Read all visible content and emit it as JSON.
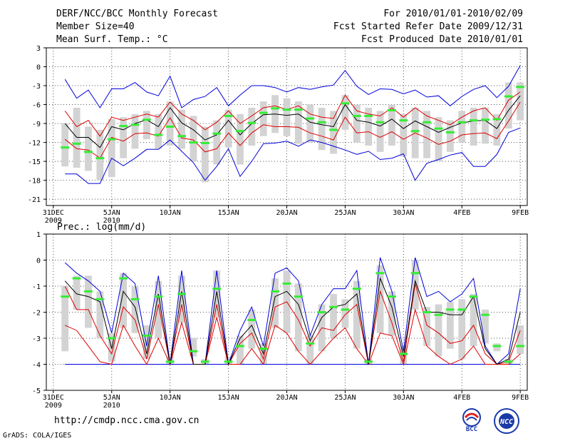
{
  "header": {
    "title": "DERF/NCC/BCC Monthly Forecast",
    "member_size": "Member Size=40",
    "variable": "Mean Surf. Temp.: °C",
    "period": "For 2010/01/01-2010/02/09",
    "fcst_started": "Fcst Started Refer Date 2009/12/31",
    "fcst_produced": "Fcst Produced Date 2010/01/01"
  },
  "footer": {
    "url": "http://cmdp.ncc.cma.gov.cn",
    "credit": "GrADS: COLA/IGES",
    "logo_left_text": "BCC",
    "logo_right_text": "NCC"
  },
  "colors": {
    "box": "#d3d3d3",
    "median": "#33ee33",
    "extreme": "#0000dd",
    "spread": "#dd0000",
    "mean": "#000000"
  },
  "chart_data": [
    {
      "type": "box-plume",
      "title": "Mean Surf. Temp.: °C",
      "xlabel": "",
      "ylabel": "",
      "x_ticks": [
        {
          "day": 0,
          "label": "31DEC",
          "sub": "2009"
        },
        {
          "day": 5,
          "label": "5JAN",
          "sub": "2010"
        },
        {
          "day": 10,
          "label": "10JAN",
          "sub": ""
        },
        {
          "day": 15,
          "label": "15JAN",
          "sub": ""
        },
        {
          "day": 20,
          "label": "20JAN",
          "sub": ""
        },
        {
          "day": 25,
          "label": "25JAN",
          "sub": ""
        },
        {
          "day": 30,
          "label": "30JAN",
          "sub": ""
        },
        {
          "day": 35,
          "label": "4FEB",
          "sub": ""
        },
        {
          "day": 40,
          "label": "9FEB",
          "sub": ""
        }
      ],
      "xlim": [
        0,
        40
      ],
      "ylim": [
        -22,
        3
      ],
      "y_ticks": [
        3,
        0,
        -3,
        -6,
        -9,
        -12,
        -15,
        -18,
        -21
      ],
      "days": [
        1,
        2,
        3,
        4,
        5,
        6,
        7,
        8,
        9,
        10,
        11,
        12,
        13,
        14,
        15,
        16,
        17,
        18,
        19,
        20,
        21,
        22,
        23,
        24,
        25,
        26,
        27,
        28,
        29,
        30,
        31,
        32,
        33,
        34,
        35,
        36,
        37,
        38,
        39,
        40
      ],
      "series": [
        {
          "name": "max",
          "color": "#0000dd",
          "values": [
            -2,
            -5,
            -3.7,
            -6.5,
            -3.5,
            -3.5,
            -2.5,
            -4,
            -4.6,
            -1.5,
            -6.5,
            -5.2,
            -4.7,
            -3.3,
            -6.2,
            -4.5,
            -3,
            -3,
            -3.3,
            -4,
            -3.3,
            -3.6,
            -3.2,
            -2.9,
            -0.6,
            -3.1,
            -4.4,
            -3.5,
            -3.6,
            -4.3,
            -3.7,
            -4.8,
            -4.6,
            -6.2,
            -4.7,
            -3.6,
            -3,
            -4.9,
            -3.1,
            0.2
          ]
        },
        {
          "name": "upper",
          "color": "#dd0000",
          "values": [
            -7,
            -9.5,
            -8.5,
            -11,
            -8,
            -8.5,
            -8,
            -7.5,
            -8,
            -5.6,
            -7.5,
            -8.5,
            -10,
            -8.8,
            -7,
            -9,
            -7.8,
            -6.5,
            -6.2,
            -6.8,
            -6.2,
            -7.5,
            -8,
            -8.2,
            -4.5,
            -7,
            -7.5,
            -7.8,
            -6.5,
            -8,
            -6.5,
            -7.8,
            -8.5,
            -9.2,
            -8,
            -7,
            -6.5,
            -8.5,
            -5.3,
            -4
          ]
        },
        {
          "name": "mean",
          "color": "#000000",
          "values": [
            -9,
            -11.2,
            -11.2,
            -12.8,
            -9.5,
            -10,
            -9,
            -8.4,
            -9.5,
            -6.5,
            -8.9,
            -10,
            -11.6,
            -10.8,
            -8.5,
            -10.8,
            -9,
            -7.6,
            -7.5,
            -7.7,
            -7.5,
            -8.8,
            -9.2,
            -9.5,
            -6,
            -8.5,
            -8.8,
            -9.4,
            -8.3,
            -9.8,
            -8.6,
            -9.5,
            -10.4,
            -9.6,
            -8.9,
            -8.6,
            -8.5,
            -9.8,
            -6.9,
            -4.6
          ]
        },
        {
          "name": "lower",
          "color": "#dd0000",
          "values": [
            -11.5,
            -13,
            -13.2,
            -14.5,
            -11.2,
            -11.8,
            -10.6,
            -10.5,
            -11,
            -8.1,
            -11.3,
            -11.6,
            -13.5,
            -13,
            -10.5,
            -12.5,
            -10.5,
            -9.2,
            -9.5,
            -9.5,
            -9.6,
            -10.5,
            -11,
            -11.6,
            -8,
            -10.5,
            -10.3,
            -11.2,
            -10.3,
            -11.5,
            -10.5,
            -11.3,
            -12.3,
            -11.8,
            -10.8,
            -10.6,
            -10.5,
            -11.4,
            -8.6,
            -5.6
          ]
        },
        {
          "name": "min",
          "color": "#0000dd",
          "values": [
            -17,
            -17,
            -18.5,
            -18.5,
            -14.5,
            -15.7,
            -14.5,
            -13.1,
            -13.1,
            -11.6,
            -13.4,
            -15.2,
            -18,
            -15.8,
            -13,
            -17.4,
            -15,
            -12.2,
            -12.1,
            -11.8,
            -12.6,
            -11.6,
            -12,
            -12.6,
            -13.2,
            -13.9,
            -13.4,
            -14.7,
            -14.5,
            -13.8,
            -18,
            -15.3,
            -14.7,
            -14,
            -13.6,
            -15.8,
            -15.8,
            -13.9,
            -10.4,
            -9.7
          ]
        }
      ],
      "boxes": [
        {
          "top": -9,
          "bottom": -15.8,
          "median": -12.8
        },
        {
          "top": -6.5,
          "bottom": -16,
          "median": -12.2
        },
        {
          "top": -9.5,
          "bottom": -16.5,
          "median": -13.5
        },
        {
          "top": -10,
          "bottom": -18,
          "median": -14.5
        },
        {
          "top": -8.3,
          "bottom": -17.5,
          "median": -11.5
        },
        {
          "top": -8,
          "bottom": -14.5,
          "median": -9.4
        },
        {
          "top": -7.5,
          "bottom": -13,
          "median": -9.2
        },
        {
          "top": -7,
          "bottom": -11.5,
          "median": -8.4
        },
        {
          "top": -7.5,
          "bottom": -13,
          "median": -10.8
        },
        {
          "top": -5.5,
          "bottom": -12.5,
          "median": -9.5
        },
        {
          "top": -6.8,
          "bottom": -13,
          "median": -11
        },
        {
          "top": -7.8,
          "bottom": -15,
          "median": -12
        },
        {
          "top": -9.5,
          "bottom": -18.3,
          "median": -12.1
        },
        {
          "top": -8.5,
          "bottom": -15.5,
          "median": -10.6
        },
        {
          "top": -6.8,
          "bottom": -12.8,
          "median": -7.8
        },
        {
          "top": -7.5,
          "bottom": -15.5,
          "median": -10.2
        },
        {
          "top": -6.5,
          "bottom": -12.5,
          "median": -8.9
        },
        {
          "top": -5.5,
          "bottom": -11,
          "median": -7.3
        },
        {
          "top": -4.5,
          "bottom": -10.5,
          "median": -6.6
        },
        {
          "top": -5,
          "bottom": -11,
          "median": -6.8
        },
        {
          "top": -5.5,
          "bottom": -12.2,
          "median": -6.8
        },
        {
          "top": -6,
          "bottom": -12,
          "median": -8.2
        },
        {
          "top": -6.5,
          "bottom": -13.2,
          "median": -8.8
        },
        {
          "top": -7,
          "bottom": -13.8,
          "median": -10
        },
        {
          "top": -4.5,
          "bottom": -10,
          "median": -5.8
        },
        {
          "top": -6,
          "bottom": -12,
          "median": -7.8
        },
        {
          "top": -6.5,
          "bottom": -12.5,
          "median": -7.8
        },
        {
          "top": -7,
          "bottom": -13.5,
          "median": -8.8
        },
        {
          "top": -6,
          "bottom": -12.5,
          "median": -6.9
        },
        {
          "top": -7.5,
          "bottom": -14.2,
          "median": -8.5
        },
        {
          "top": -6.5,
          "bottom": -14.5,
          "median": -10.2
        },
        {
          "top": -7,
          "bottom": -14.5,
          "median": -8.8
        },
        {
          "top": -8,
          "bottom": -15,
          "median": -9.8
        },
        {
          "top": -8.5,
          "bottom": -13.5,
          "median": -10.4
        },
        {
          "top": -7,
          "bottom": -12,
          "median": -8.8
        },
        {
          "top": -6.5,
          "bottom": -12.5,
          "median": -8.5
        },
        {
          "top": -6.5,
          "bottom": -12.2,
          "median": -8.4
        },
        {
          "top": -7.5,
          "bottom": -12.5,
          "median": -8.3
        },
        {
          "top": -2.5,
          "bottom": -9.8,
          "median": -4.7
        },
        {
          "top": -2.5,
          "bottom": -8.5,
          "median": -3.2
        }
      ]
    },
    {
      "type": "box-plume",
      "title": "Prec.: log(mm/d)",
      "xlabel": "",
      "ylabel": "",
      "x_ticks": [
        {
          "day": 0,
          "label": "31DEC",
          "sub": "2009"
        },
        {
          "day": 5,
          "label": "5JAN",
          "sub": "2010"
        },
        {
          "day": 10,
          "label": "10JAN",
          "sub": ""
        },
        {
          "day": 15,
          "label": "15JAN",
          "sub": ""
        },
        {
          "day": 20,
          "label": "20JAN",
          "sub": ""
        },
        {
          "day": 25,
          "label": "25JAN",
          "sub": ""
        },
        {
          "day": 30,
          "label": "30JAN",
          "sub": ""
        },
        {
          "day": 35,
          "label": "4FEB",
          "sub": ""
        },
        {
          "day": 40,
          "label": "9FEB",
          "sub": ""
        }
      ],
      "xlim": [
        0,
        40
      ],
      "ylim": [
        -5,
        1
      ],
      "y_ticks": [
        1,
        0,
        -1,
        -2,
        -3,
        -4,
        -5
      ],
      "days": [
        1,
        2,
        3,
        4,
        5,
        6,
        7,
        8,
        9,
        10,
        11,
        12,
        13,
        14,
        15,
        16,
        17,
        18,
        19,
        20,
        21,
        22,
        23,
        24,
        25,
        26,
        27,
        28,
        29,
        30,
        31,
        32,
        33,
        34,
        35,
        36,
        37,
        38,
        39,
        40
      ],
      "series": [
        {
          "name": "max",
          "color": "#0000dd",
          "values": [
            -0.1,
            -0.5,
            -0.8,
            -1.2,
            -2.8,
            -0.5,
            -0.9,
            -3.3,
            -0.6,
            -4,
            -0.4,
            -4,
            -4,
            -0.4,
            -4,
            -2.7,
            -1.8,
            -3.3,
            -0.5,
            -0.3,
            -0.8,
            -2.9,
            -1.7,
            -1.1,
            -1.1,
            -0.4,
            -4,
            0.1,
            -1.2,
            -3.5,
            0.1,
            -1.4,
            -1.2,
            -1.6,
            -1.3,
            -0.7,
            -3.3,
            -4,
            -3.6,
            -1.1
          ]
        },
        {
          "name": "upper",
          "color": "#dd0000",
          "values": [
            -1,
            -1.9,
            -1.9,
            -2.9,
            -3.6,
            -1.8,
            -2.3,
            -3.8,
            -1.7,
            -4,
            -1.7,
            -4,
            -4,
            -1.7,
            -4,
            -3.2,
            -2.8,
            -3.8,
            -1.8,
            -1.6,
            -2.3,
            -3.3,
            -2.6,
            -2.7,
            -2.1,
            -1.7,
            -4,
            -1.2,
            -2.4,
            -3.9,
            -0.9,
            -2.5,
            -2.8,
            -3.2,
            -3.1,
            -2.5,
            -3.6,
            -4,
            -3.9,
            -2.7
          ]
        },
        {
          "name": "mean",
          "color": "#000000",
          "values": [
            -0.8,
            -1.3,
            -1.4,
            -1.6,
            -3.4,
            -1.2,
            -1.8,
            -3.6,
            -1.3,
            -4,
            -1.2,
            -4,
            -4,
            -1.2,
            -4,
            -3,
            -2.5,
            -3.6,
            -1.4,
            -1.2,
            -1.7,
            -3.1,
            -2.2,
            -1.8,
            -1.7,
            -1.3,
            -4,
            -0.7,
            -1.8,
            -3.7,
            -0.8,
            -2,
            -2,
            -2.1,
            -2.1,
            -1.4,
            -3.4,
            -4,
            -3.8,
            -2
          ]
        },
        {
          "name": "lower",
          "color": "#dd0000",
          "values": [
            -2.5,
            -2.7,
            -3.3,
            -3.9,
            -4,
            -2.5,
            -3.3,
            -4,
            -3,
            -4,
            -2.4,
            -4,
            -4,
            -2.2,
            -4,
            -4,
            -3.4,
            -4,
            -2.5,
            -2.8,
            -3.5,
            -4,
            -3.5,
            -3,
            -2.6,
            -3.4,
            -4,
            -2.8,
            -2.9,
            -4,
            -1.9,
            -3.3,
            -3.7,
            -4,
            -3.8,
            -3.3,
            -4,
            -4,
            -4,
            -3.6
          ]
        },
        {
          "name": "min",
          "color": "#0000dd",
          "values": [
            -4,
            -4,
            -4,
            -4,
            -4,
            -4,
            -4,
            -4,
            -4,
            -4,
            -4,
            -4,
            -4,
            -4,
            -4,
            -4,
            -4,
            -4,
            -4,
            -4,
            -4,
            -4,
            -4,
            -4,
            -4,
            -4,
            -4,
            -4,
            -4,
            -4,
            -4,
            -4,
            -4,
            -4,
            -4,
            -4,
            -4,
            -4,
            -4,
            -4
          ]
        }
      ],
      "boxes": [
        {
          "top": -1,
          "bottom": -3.5,
          "median": -1.4
        },
        {
          "top": -0.6,
          "bottom": -1.9,
          "median": -0.7
        },
        {
          "top": -0.6,
          "bottom": -2.6,
          "median": -1.2
        },
        {
          "top": -1.2,
          "bottom": -3,
          "median": -1.5
        },
        {
          "top": -2.8,
          "bottom": -3.9,
          "median": -3
        },
        {
          "top": -0.5,
          "bottom": -2.6,
          "median": -0.7
        },
        {
          "top": -1,
          "bottom": -2.8,
          "median": -1.5
        },
        {
          "top": -2.5,
          "bottom": -3.8,
          "median": -2.9
        },
        {
          "top": -0.8,
          "bottom": -3,
          "median": -1.4
        },
        {
          "top": -3.7,
          "bottom": -4,
          "median": -3.9
        },
        {
          "top": -0.6,
          "bottom": -2.4,
          "median": -1.3
        },
        {
          "top": -3,
          "bottom": -3.7,
          "median": -3.5
        },
        {
          "top": -3.8,
          "bottom": -4,
          "median": -3.9
        },
        {
          "top": -0.4,
          "bottom": -2.2,
          "median": -1.1
        },
        {
          "top": -3.7,
          "bottom": -4,
          "median": -3.9
        },
        {
          "top": -2.9,
          "bottom": -4,
          "median": -3.3
        },
        {
          "top": -1.9,
          "bottom": -3.4,
          "median": -2.3
        },
        {
          "top": -3.2,
          "bottom": -4,
          "median": -3.4
        },
        {
          "top": -0.7,
          "bottom": -2.6,
          "median": -1.2
        },
        {
          "top": -0.4,
          "bottom": -2.8,
          "median": -0.9
        },
        {
          "top": -0.9,
          "bottom": -3.5,
          "median": -1.4
        },
        {
          "top": -2.9,
          "bottom": -4,
          "median": -3.2
        },
        {
          "top": -1.7,
          "bottom": -3.5,
          "median": -2
        },
        {
          "top": -1.3,
          "bottom": -3,
          "median": -1.8
        },
        {
          "top": -1.5,
          "bottom": -2.6,
          "median": -1.9
        },
        {
          "top": -0.8,
          "bottom": -3.4,
          "median": -1.1
        },
        {
          "top": -3.8,
          "bottom": -4,
          "median": -3.9
        },
        {
          "top": -0.2,
          "bottom": -2.8,
          "median": -0.5
        },
        {
          "top": -1.2,
          "bottom": -2.9,
          "median": -1.4
        },
        {
          "top": -3.3,
          "bottom": -4,
          "median": -3.6
        },
        {
          "top": 0,
          "bottom": -1.9,
          "median": -0.5
        },
        {
          "top": -1.8,
          "bottom": -3.3,
          "median": -2
        },
        {
          "top": -1.7,
          "bottom": -3.7,
          "median": -2.1
        },
        {
          "top": -1.6,
          "bottom": -3.4,
          "median": -1.9
        },
        {
          "top": -1.5,
          "bottom": -3.8,
          "median": -1.9
        },
        {
          "top": -1.3,
          "bottom": -3.3,
          "median": -1.4
        },
        {
          "top": -1.9,
          "bottom": -3.2,
          "median": -2.1
        },
        {
          "top": -3.2,
          "bottom": -3.5,
          "median": -3.3
        },
        {
          "top": -3.8,
          "bottom": -4,
          "median": -3.9
        },
        {
          "top": -2.5,
          "bottom": -3.6,
          "median": -3.3
        }
      ]
    }
  ]
}
